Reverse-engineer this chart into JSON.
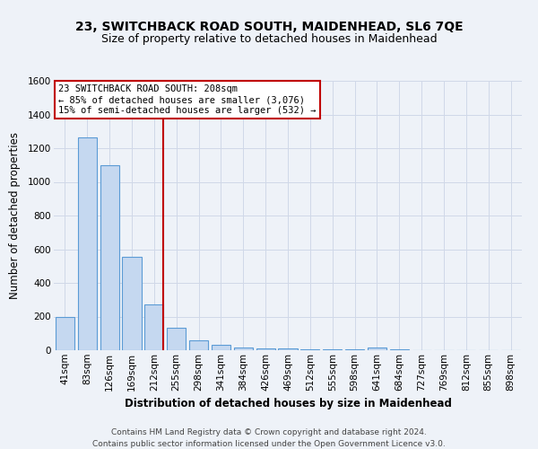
{
  "title": "23, SWITCHBACK ROAD SOUTH, MAIDENHEAD, SL6 7QE",
  "subtitle": "Size of property relative to detached houses in Maidenhead",
  "xlabel": "Distribution of detached houses by size in Maidenhead",
  "ylabel": "Number of detached properties",
  "footer1": "Contains HM Land Registry data © Crown copyright and database right 2024.",
  "footer2": "Contains public sector information licensed under the Open Government Licence v3.0.",
  "bin_labels": [
    "41sqm",
    "83sqm",
    "126sqm",
    "169sqm",
    "212sqm",
    "255sqm",
    "298sqm",
    "341sqm",
    "384sqm",
    "426sqm",
    "469sqm",
    "512sqm",
    "555sqm",
    "598sqm",
    "641sqm",
    "684sqm",
    "727sqm",
    "769sqm",
    "812sqm",
    "855sqm",
    "898sqm"
  ],
  "bar_heights": [
    197,
    1265,
    1098,
    553,
    270,
    131,
    60,
    32,
    18,
    12,
    10,
    8,
    6,
    5,
    15,
    5,
    0,
    0,
    0,
    0,
    0
  ],
  "bar_color": "#c5d8f0",
  "bar_edge_color": "#5b9bd5",
  "vline_x_index": 4,
  "vline_color": "#c00000",
  "annotation_text": "23 SWITCHBACK ROAD SOUTH: 208sqm\n← 85% of detached houses are smaller (3,076)\n15% of semi-detached houses are larger (532) →",
  "annotation_box_color": "white",
  "annotation_box_edge": "#c00000",
  "ylim": [
    0,
    1600
  ],
  "yticks": [
    0,
    200,
    400,
    600,
    800,
    1000,
    1200,
    1400,
    1600
  ],
  "grid_color": "#d0d8e8",
  "bg_color": "#eef2f8",
  "title_fontsize": 10,
  "subtitle_fontsize": 9,
  "axis_fontsize": 8.5,
  "tick_fontsize": 7.5,
  "ann_fontsize": 7.5,
  "footer_fontsize": 6.5
}
